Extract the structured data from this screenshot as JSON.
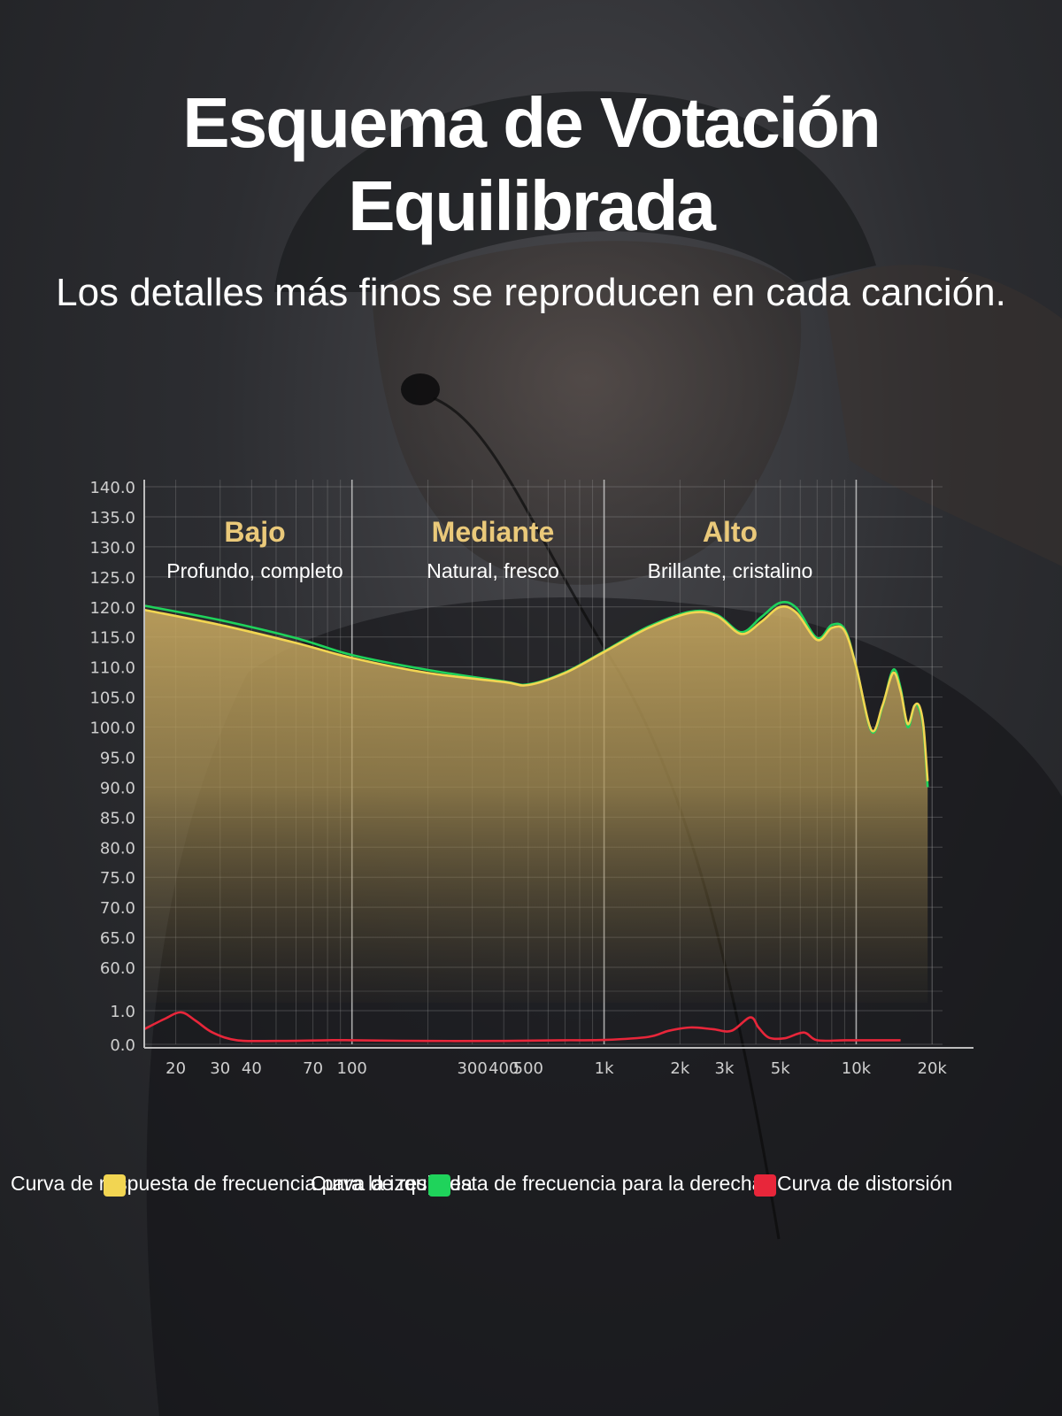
{
  "header": {
    "title_line1": "Esquema de Votación",
    "title_line2": "Equilibrada",
    "subtitle": "Los detalles más finos se reproducen en cada canción."
  },
  "colors": {
    "left_curve": "#f2d552",
    "right_curve": "#1fd35b",
    "distortion": "#e8263a",
    "band_title": "#eac97a",
    "grid": "#8a8a8a"
  },
  "legend": [
    {
      "label": "Curva de respuesta de frecuencia para la izquierda",
      "color": "#f2d552"
    },
    {
      "label": "Curva de respuesta de frecuencia para la derecha",
      "color": "#1fd35b"
    },
    {
      "label": "Curva de distorsión",
      "color": "#e8263a"
    }
  ],
  "chart_data": {
    "type": "line",
    "x_scale": "log",
    "xlim": [
      15,
      22000
    ],
    "x_ticks": [
      {
        "value": 20,
        "label": "20"
      },
      {
        "value": 30,
        "label": "30"
      },
      {
        "value": 40,
        "label": "40"
      },
      {
        "value": 70,
        "label": "70"
      },
      {
        "value": 100,
        "label": "100"
      },
      {
        "value": 300,
        "label": "300"
      },
      {
        "value": 400,
        "label": "400"
      },
      {
        "value": 500,
        "label": "500"
      },
      {
        "value": 1000,
        "label": "1k"
      },
      {
        "value": 2000,
        "label": "2k"
      },
      {
        "value": 3000,
        "label": "3k"
      },
      {
        "value": 5000,
        "label": "5k"
      },
      {
        "value": 10000,
        "label": "10k"
      },
      {
        "value": 20000,
        "label": "20k"
      }
    ],
    "y_ticks": [
      "140.0",
      "135.0",
      "130.0",
      "125.0",
      "120.0",
      "115.0",
      "110.0",
      "105.0",
      "100.0",
      "95.0",
      "90.0",
      "85.0",
      "80.0",
      "75.0",
      "70.0",
      "65.0",
      "60.0",
      "1.0",
      "0.0"
    ],
    "y_upper_range": [
      60,
      140
    ],
    "y_lower_range": [
      0,
      1
    ],
    "grid": true,
    "bands": [
      {
        "title": "Bajo",
        "subtitle": "Profundo, completo"
      },
      {
        "title": "Mediante",
        "subtitle": "Natural, fresco"
      },
      {
        "title": "Alto",
        "subtitle": "Brillante, cristalino"
      }
    ],
    "series": [
      {
        "name": "Curva de respuesta de frecuencia para la izquierda",
        "axis": "upper",
        "x": [
          15,
          30,
          60,
          100,
          200,
          400,
          500,
          700,
          1000,
          1500,
          2200,
          2800,
          3500,
          4200,
          5000,
          5800,
          7000,
          8000,
          9000,
          10000,
          11500,
          12700,
          14000,
          15000,
          16000,
          17000,
          17800,
          18500,
          19200
        ],
        "y": [
          119.5,
          117.0,
          114.0,
          111.5,
          109.0,
          107.5,
          107.0,
          109.0,
          112.5,
          116.5,
          119.0,
          118.5,
          115.5,
          117.5,
          120.0,
          119.0,
          114.5,
          116.5,
          116.0,
          110.0,
          99.5,
          103.5,
          109.0,
          106.0,
          100.5,
          103.5,
          103.5,
          100.0,
          91.0
        ]
      },
      {
        "name": "Curva de respuesta de frecuencia para la derecha",
        "axis": "upper",
        "x": [
          15,
          30,
          60,
          100,
          200,
          400,
          500,
          700,
          1000,
          1500,
          2200,
          2800,
          3500,
          4200,
          5000,
          5800,
          7000,
          8000,
          9000,
          10000,
          11500,
          12700,
          14000,
          15000,
          16000,
          17000,
          17800,
          18500,
          19200
        ],
        "y": [
          120.2,
          117.8,
          114.8,
          112.0,
          109.5,
          107.6,
          107.1,
          109.1,
          112.6,
          116.7,
          119.2,
          118.7,
          115.8,
          118.3,
          120.7,
          119.8,
          114.8,
          117.0,
          116.3,
          110.0,
          99.3,
          103.3,
          109.5,
          106.5,
          100.0,
          103.5,
          103.0,
          99.5,
          90.0
        ]
      },
      {
        "name": "Curva de distorsión",
        "axis": "lower",
        "x": [
          15,
          18,
          21,
          24,
          28,
          35,
          50,
          80,
          100,
          200,
          400,
          700,
          1000,
          1500,
          1800,
          2200,
          2700,
          3200,
          3800,
          4100,
          4500,
          5200,
          6200,
          7000,
          9000,
          12000,
          15000
        ],
        "y": [
          0.45,
          0.75,
          0.95,
          0.7,
          0.35,
          0.12,
          0.1,
          0.12,
          0.12,
          0.1,
          0.1,
          0.12,
          0.13,
          0.22,
          0.4,
          0.5,
          0.45,
          0.4,
          0.8,
          0.5,
          0.2,
          0.18,
          0.35,
          0.12,
          0.12,
          0.12,
          0.12
        ]
      }
    ]
  }
}
